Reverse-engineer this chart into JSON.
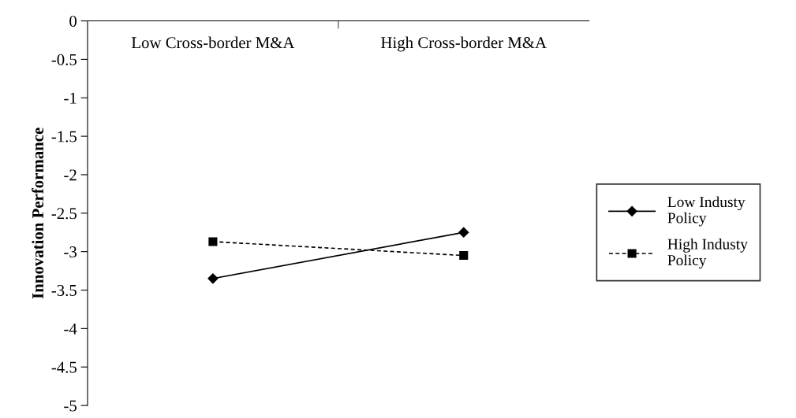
{
  "chart_data": {
    "type": "line",
    "ylabel": "Innovation Performance",
    "categories": [
      "Low Cross-border M&A",
      "High Cross-border M&A"
    ],
    "series": [
      {
        "name": "Low Industy Policy",
        "color": "#000000",
        "values": [
          -3.35,
          -2.75
        ],
        "marker": "diamond",
        "line_style": "solid"
      },
      {
        "name": "High Industy Policy",
        "color": "#000000",
        "values": [
          -2.87,
          -3.05
        ],
        "marker": "square",
        "line_style": "dashed"
      }
    ],
    "ylim": [
      -5,
      0
    ],
    "yticks": [
      -5,
      -4.5,
      -4,
      -3.5,
      -3,
      -2.5,
      -2,
      -1.5,
      -1,
      -0.5,
      0
    ],
    "grid": false,
    "legend": "right"
  }
}
